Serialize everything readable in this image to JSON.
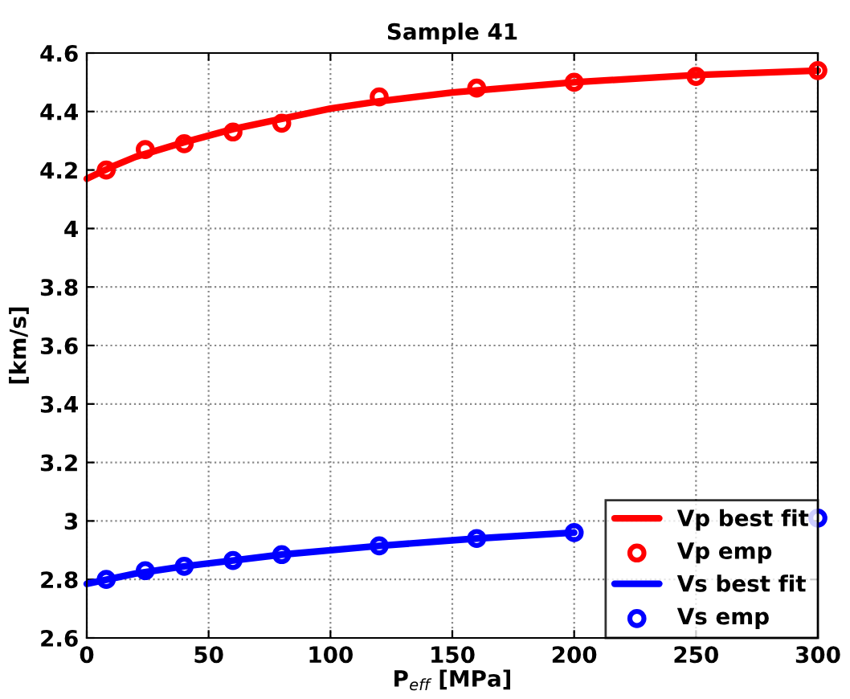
{
  "chart_data": {
    "type": "line",
    "title": "Sample 41",
    "xlabel": "P$_{eff}$ [MPa]",
    "ylabel": "[km/s]",
    "xlim": [
      0,
      300
    ],
    "ylim": [
      2.6,
      4.6
    ],
    "xticks": [
      0,
      50,
      100,
      150,
      200,
      250,
      300
    ],
    "yticks": [
      2.6,
      2.8,
      3,
      3.2,
      3.4,
      3.6,
      3.8,
      4,
      4.2,
      4.4,
      4.6
    ],
    "grid": true,
    "legend": "bottom right",
    "series": [
      {
        "name": "Vp best fit",
        "color": "#ff0000",
        "marker": "none",
        "x": [
          0,
          10,
          20,
          40,
          60,
          80,
          100,
          120,
          150,
          200,
          250,
          300
        ],
        "values": [
          4.17,
          4.21,
          4.245,
          4.295,
          4.34,
          4.375,
          4.41,
          4.435,
          4.465,
          4.5,
          4.525,
          4.54
        ]
      },
      {
        "name": "Vp emp",
        "type": "scatter",
        "color": "#ff0000",
        "marker": "circle",
        "x": [
          8,
          24,
          40,
          60,
          80,
          120,
          160,
          200,
          250,
          300
        ],
        "values": [
          4.2,
          4.27,
          4.29,
          4.33,
          4.36,
          4.45,
          4.48,
          4.5,
          4.52,
          4.54
        ]
      },
      {
        "name": "Vs best fit",
        "color": "#0000ff",
        "marker": "none",
        "x": [
          0,
          20,
          40,
          60,
          80,
          100,
          120,
          160,
          200
        ],
        "values": [
          2.785,
          2.82,
          2.845,
          2.865,
          2.885,
          2.9,
          2.915,
          2.94,
          2.96
        ]
      },
      {
        "name": "Vs emp",
        "type": "scatter",
        "color": "#0000ff",
        "marker": "circle",
        "x": [
          8,
          24,
          40,
          60,
          80,
          120,
          160,
          200,
          250,
          300
        ],
        "values": [
          2.8,
          2.83,
          2.845,
          2.865,
          2.885,
          2.915,
          2.94,
          2.96,
          null,
          3.01
        ]
      }
    ]
  }
}
